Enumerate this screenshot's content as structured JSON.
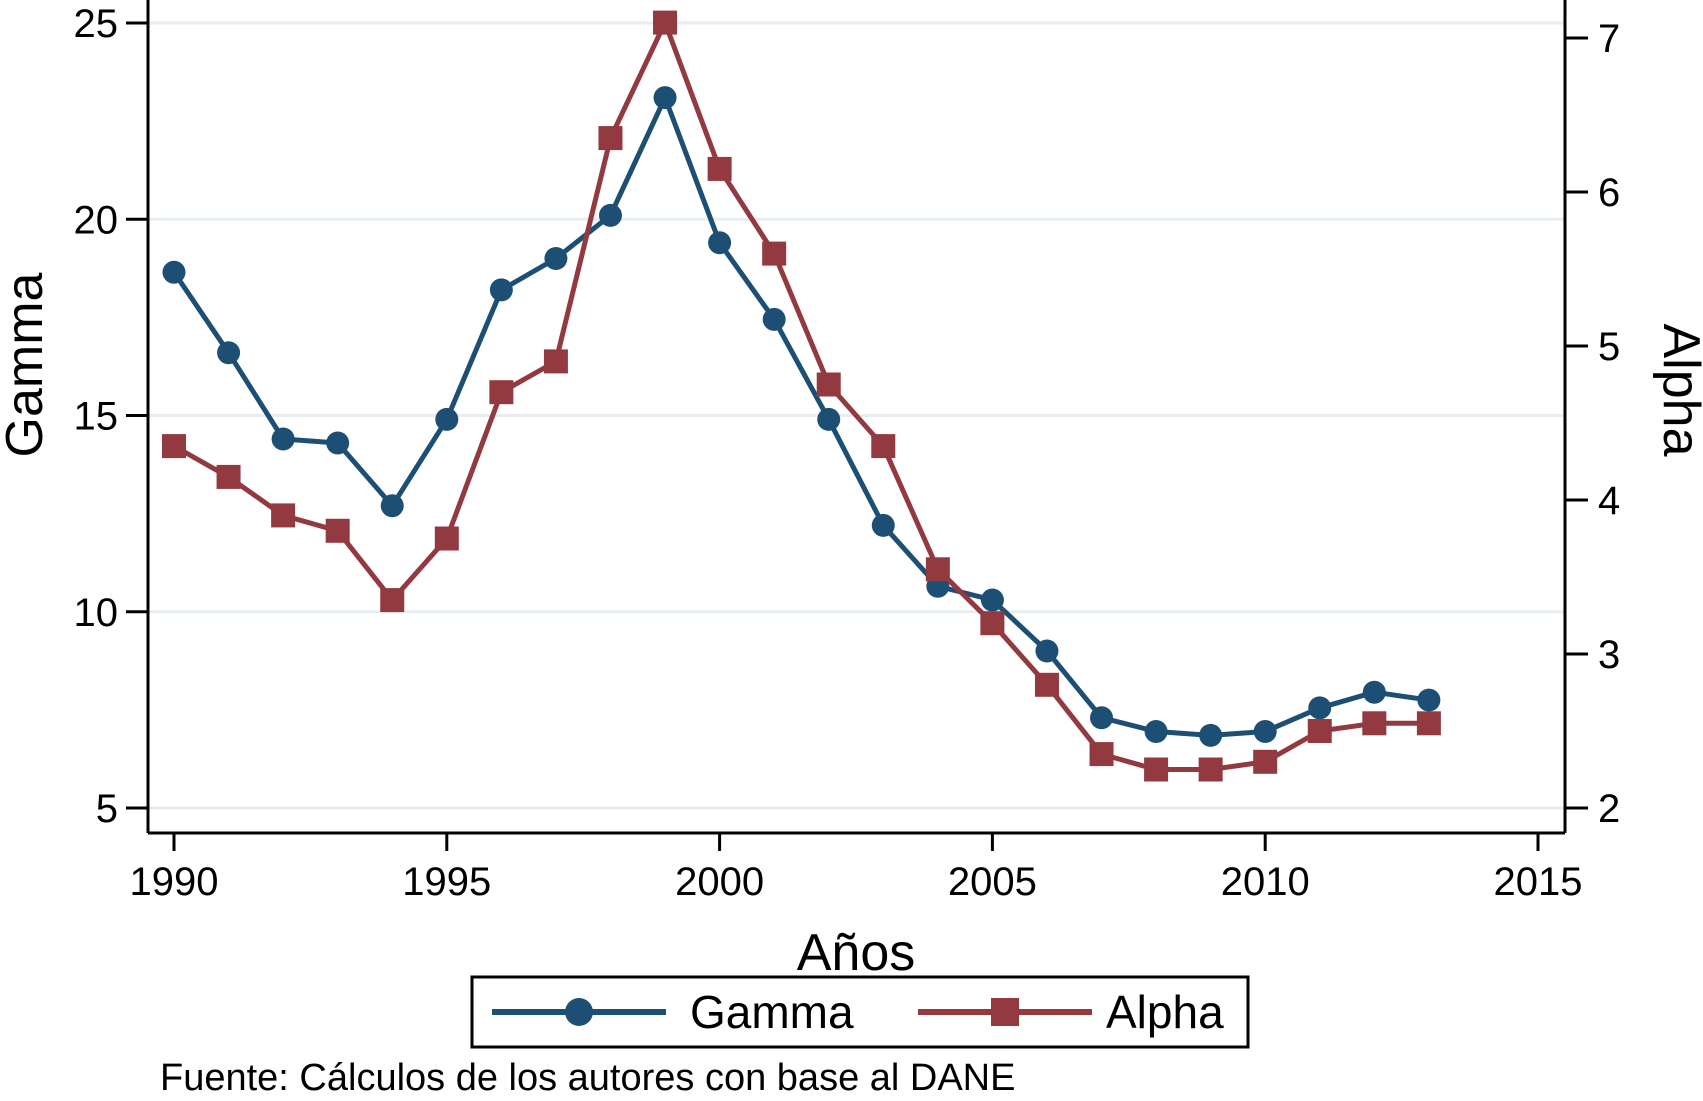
{
  "chart_data": {
    "type": "line",
    "title": "",
    "xlabel": "Años",
    "ylabel_left": "Gamma",
    "ylabel_right": "Alpha",
    "note": "Fuente: Cálculos de los autores con base al DANE",
    "x": [
      1990,
      1991,
      1992,
      1993,
      1994,
      1995,
      1996,
      1997,
      1998,
      1999,
      2000,
      2001,
      2002,
      2003,
      2004,
      2005,
      2006,
      2007,
      2008,
      2009,
      2010,
      2011,
      2012,
      2013
    ],
    "series": [
      {
        "name": "Gamma",
        "axis": "left",
        "color": "#1d4f75",
        "marker": "circle",
        "values": [
          18.65,
          16.6,
          14.4,
          14.3,
          12.7,
          14.9,
          18.2,
          19.0,
          20.1,
          23.1,
          19.4,
          17.45,
          14.9,
          12.2,
          10.65,
          10.3,
          9.0,
          7.3,
          6.95,
          6.85,
          6.95,
          7.55,
          7.95,
          7.75
        ]
      },
      {
        "name": "Alpha",
        "axis": "right",
        "color": "#923a40",
        "marker": "square",
        "values": [
          4.35,
          4.15,
          3.9,
          3.8,
          3.35,
          3.75,
          4.7,
          4.9,
          6.35,
          7.1,
          6.15,
          5.6,
          4.75,
          4.35,
          3.55,
          3.2,
          2.8,
          2.35,
          2.25,
          2.25,
          2.3,
          2.5,
          2.55,
          2.55
        ]
      }
    ],
    "x_ticks": [
      1990,
      1995,
      2000,
      2005,
      2010,
      2015
    ],
    "y_left_ticks": [
      25,
      20,
      15,
      10,
      5
    ],
    "y_right_ticks": [
      7,
      6,
      5,
      4,
      3,
      2
    ],
    "ylim_left": [
      5,
      25
    ],
    "ylim_right": [
      2,
      7
    ],
    "xlim": [
      1990,
      2015
    ],
    "grid": "horizontal",
    "legend_position": "bottom",
    "legend": [
      {
        "label": "Gamma"
      },
      {
        "label": "Alpha"
      }
    ]
  },
  "colors": {
    "gamma_line": "#1d4f75",
    "alpha_line": "#923a40",
    "grid_line": "#e6eef2",
    "axis_line": "#000000",
    "background": "#ffffff",
    "legend_border": "#000000"
  }
}
